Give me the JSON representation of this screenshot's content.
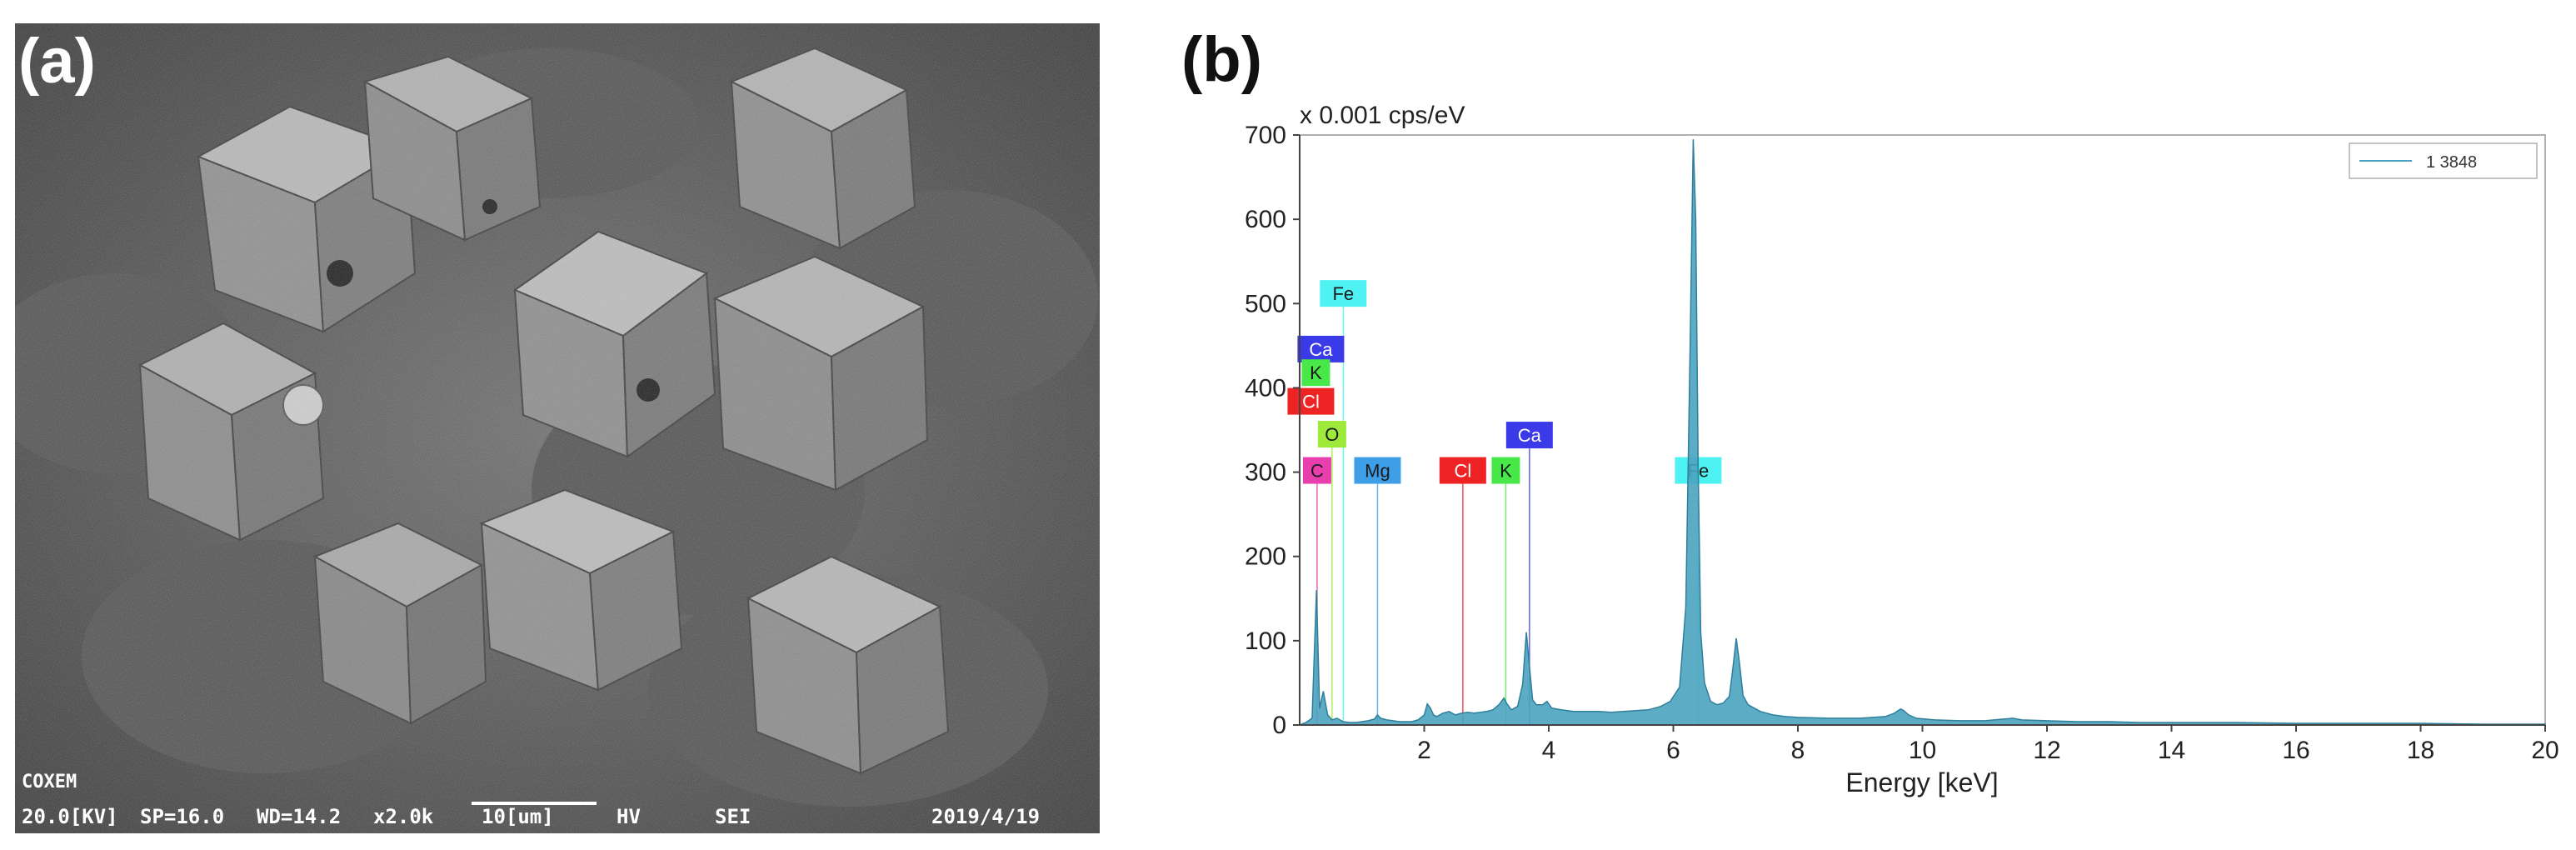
{
  "panels": {
    "a_label": "(a)",
    "b_label": "(b)"
  },
  "sem": {
    "brand": "COXEM",
    "kv": "20.0[KV]",
    "sp": "SP=16.0",
    "wd": "WD=14.2",
    "mag": "x2.0k",
    "scale": "10[um]",
    "mode": "HV",
    "detector": "SEI",
    "date": "2019/4/19"
  },
  "chart_data": {
    "type": "area",
    "title": "",
    "ylabel": "x 0.001 cps/eV",
    "xlabel": "Energy [keV]",
    "xlim": [
      0,
      20
    ],
    "ylim": [
      0,
      700
    ],
    "xticks": [
      "2",
      "4",
      "6",
      "8",
      "10",
      "12",
      "14",
      "16",
      "18",
      "20"
    ],
    "yticks": [
      "0",
      "100",
      "200",
      "300",
      "400",
      "500",
      "600",
      "700"
    ],
    "grid": false,
    "legend": {
      "position": "top-right",
      "entries": [
        "1 3848"
      ]
    },
    "series": [
      {
        "name": "1 3848",
        "color": "#4aa3bf",
        "x": [
          0.0,
          0.1,
          0.2,
          0.27,
          0.32,
          0.38,
          0.45,
          0.52,
          0.6,
          0.7,
          0.8,
          0.9,
          1.0,
          1.1,
          1.2,
          1.25,
          1.3,
          1.4,
          1.5,
          1.6,
          1.7,
          1.8,
          1.9,
          2.0,
          2.05,
          2.1,
          2.15,
          2.2,
          2.3,
          2.4,
          2.5,
          2.6,
          2.7,
          2.8,
          2.9,
          3.0,
          3.1,
          3.2,
          3.28,
          3.33,
          3.4,
          3.5,
          3.58,
          3.64,
          3.69,
          3.74,
          3.8,
          3.9,
          3.97,
          4.05,
          4.2,
          4.4,
          4.6,
          4.8,
          5.0,
          5.2,
          5.4,
          5.6,
          5.8,
          5.95,
          6.1,
          6.2,
          6.27,
          6.32,
          6.36,
          6.4,
          6.44,
          6.5,
          6.6,
          6.7,
          6.8,
          6.9,
          6.96,
          7.01,
          7.06,
          7.12,
          7.2,
          7.4,
          7.6,
          7.8,
          8.0,
          8.5,
          9.0,
          9.4,
          9.55,
          9.65,
          9.7,
          9.78,
          9.9,
          10.2,
          10.6,
          11.0,
          11.3,
          11.45,
          11.6,
          12.0,
          12.5,
          13.0,
          13.5,
          14.0,
          14.5,
          15.0,
          16.0,
          17.0,
          18.0,
          19.0,
          20.0
        ],
        "y": [
          0,
          3,
          8,
          160,
          20,
          40,
          12,
          6,
          8,
          4,
          3,
          3,
          4,
          5,
          7,
          12,
          8,
          6,
          5,
          4,
          4,
          4,
          6,
          12,
          25,
          20,
          12,
          10,
          14,
          16,
          12,
          14,
          15,
          14,
          15,
          16,
          18,
          24,
          32,
          25,
          18,
          22,
          48,
          110,
          70,
          30,
          24,
          24,
          28,
          20,
          18,
          16,
          16,
          16,
          15,
          16,
          17,
          18,
          22,
          28,
          45,
          140,
          450,
          695,
          600,
          300,
          110,
          50,
          28,
          24,
          26,
          34,
          70,
          103,
          75,
          35,
          24,
          16,
          12,
          10,
          9,
          8,
          8,
          10,
          14,
          19,
          17,
          12,
          8,
          6,
          5,
          5,
          7,
          8,
          6,
          5,
          4,
          4,
          3,
          3,
          3,
          3,
          2,
          2,
          2,
          1,
          1
        ]
      }
    ],
    "element_markers": [
      {
        "label": "Fe",
        "energy": 0.7,
        "level": 512,
        "color": "#4ff2f2",
        "text_color": "#1a1a1a",
        "line": true
      },
      {
        "label": "Ca",
        "energy": 0.34,
        "level": 446,
        "color": "#3a3ae8",
        "text_color": "#ffffff",
        "line": false
      },
      {
        "label": "K",
        "energy": 0.26,
        "level": 418,
        "color": "#49e849",
        "text_color": "#1a1a1a",
        "line": false
      },
      {
        "label": "Cl",
        "energy": 0.18,
        "level": 384,
        "color": "#ee2424",
        "text_color": "#ffffff",
        "line": false
      },
      {
        "label": "O",
        "energy": 0.52,
        "level": 345,
        "color": "#9eea3a",
        "text_color": "#1a1a1a",
        "line": true
      },
      {
        "label": "C",
        "energy": 0.28,
        "level": 302,
        "color": "#e93fae",
        "text_color": "#1a1a1a",
        "line": true
      },
      {
        "label": "Mg",
        "energy": 1.25,
        "level": 302,
        "color": "#3e9fe8",
        "text_color": "#1a1a1a",
        "line": true
      },
      {
        "label": "Cl",
        "energy": 2.62,
        "level": 302,
        "color": "#ee2424",
        "text_color": "#ffffff",
        "line": true
      },
      {
        "label": "K",
        "energy": 3.31,
        "level": 302,
        "color": "#49e849",
        "text_color": "#1a1a1a",
        "line": true
      },
      {
        "label": "Ca",
        "energy": 3.69,
        "level": 344,
        "color": "#3a3ae8",
        "text_color": "#ffffff",
        "line": true
      },
      {
        "label": "Fe",
        "energy": 6.4,
        "level": 302,
        "color": "#4ff2f2",
        "text_color": "#1a1a1a",
        "line": true
      }
    ]
  }
}
